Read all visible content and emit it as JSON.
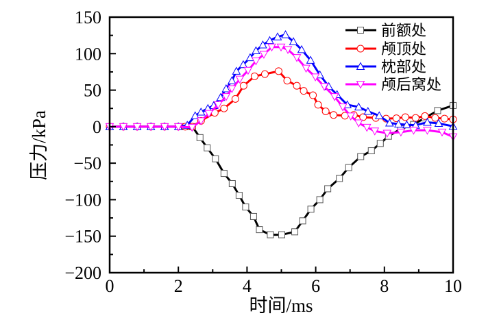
{
  "chart_data": {
    "type": "line",
    "title": "",
    "xlabel": "时间/ms",
    "ylabel": "压力/kPa",
    "xlim": [
      0,
      10
    ],
    "ylim": [
      -200,
      150
    ],
    "xticks": [
      0,
      2,
      4,
      6,
      8,
      10
    ],
    "xtick_labels": [
      "0",
      "2",
      "4",
      "6",
      "8",
      "10"
    ],
    "yticks": [
      150,
      100,
      50,
      0,
      -50,
      -100,
      -150,
      -200
    ],
    "ytick_labels": [
      "150",
      "100",
      "50",
      "0",
      "−50",
      "−100",
      "−150",
      "−200"
    ],
    "grid": false,
    "legend_position": "top-right",
    "series": [
      {
        "name": "前额处",
        "color": "#000000",
        "marker": "square",
        "x": [
          0,
          0.4,
          0.8,
          1.2,
          1.6,
          2.0,
          2.2,
          2.41,
          2.63,
          2.84,
          3.08,
          3.33,
          3.57,
          3.77,
          3.96,
          4.19,
          4.36,
          4.68,
          5.01,
          5.39,
          5.62,
          5.86,
          6.12,
          6.35,
          6.69,
          6.96,
          7.31,
          7.62,
          7.88,
          8.12,
          8.48,
          8.85,
          9.18,
          9.55,
          10.0
        ],
        "y": [
          0,
          0,
          0,
          0,
          0,
          0,
          0,
          0,
          -15,
          -29,
          -44,
          -64,
          -78,
          -94,
          -110,
          -123,
          -141,
          -148,
          -148,
          -144,
          -129,
          -113,
          -100,
          -85,
          -71,
          -56,
          -41,
          -33,
          -23,
          -13,
          -3,
          3,
          12,
          22,
          29
        ]
      },
      {
        "name": "颅顶处",
        "color": "#ff0000",
        "marker": "circle",
        "x": [
          0,
          0.4,
          0.8,
          1.2,
          1.6,
          2.0,
          2.2,
          2.4,
          2.66,
          3.06,
          3.33,
          3.66,
          3.9,
          4.22,
          4.52,
          4.92,
          5.17,
          5.45,
          5.65,
          5.92,
          6.07,
          6.29,
          6.52,
          6.85,
          7.11,
          7.38,
          7.75,
          8.05,
          8.35,
          8.61,
          8.91,
          9.18,
          9.48,
          9.75,
          10.0
        ],
        "y": [
          0,
          0,
          0,
          0,
          0,
          0,
          0,
          0,
          8,
          19,
          25,
          38,
          56,
          69,
          72,
          76,
          63,
          56,
          49,
          43,
          30,
          21,
          16,
          15,
          16,
          13,
          12,
          11,
          11.5,
          13,
          12,
          14.5,
          12,
          11,
          10
        ]
      },
      {
        "name": "枕部处",
        "color": "#0000ff",
        "marker": "triangle-up",
        "x": [
          0,
          0.4,
          0.8,
          1.2,
          1.6,
          2.0,
          2.26,
          2.49,
          2.66,
          2.86,
          3.03,
          3.23,
          3.39,
          3.56,
          3.69,
          3.89,
          4.09,
          4.26,
          4.46,
          4.66,
          4.89,
          5.12,
          5.35,
          5.59,
          5.85,
          6.12,
          6.38,
          6.62,
          6.92,
          7.25,
          7.52,
          7.85,
          8.15,
          8.41,
          8.65,
          8.91,
          9.25,
          9.58,
          10.0
        ],
        "y": [
          0,
          0,
          0,
          0,
          0,
          0,
          2,
          15,
          20,
          25,
          29,
          40,
          52,
          63,
          76,
          85,
          94.5,
          104,
          112,
          118,
          123,
          126,
          116.5,
          105.5,
          91,
          71,
          55,
          44,
          30,
          27,
          21,
          15,
          5,
          3.6,
          2.6,
          2,
          6,
          4.5,
          0.5
        ]
      },
      {
        "name": "颅后窝处",
        "color": "#ff00ff",
        "marker": "triangle-down",
        "x": [
          0,
          0.4,
          0.8,
          1.2,
          1.6,
          2.0,
          2.4,
          2.66,
          2.89,
          3.16,
          3.39,
          3.56,
          3.79,
          4.03,
          4.26,
          4.49,
          4.72,
          4.99,
          5.19,
          5.45,
          5.72,
          5.99,
          6.25,
          6.55,
          6.79,
          7.02,
          7.25,
          7.49,
          7.72,
          8.08,
          8.48,
          8.85,
          9.25,
          9.68,
          10.0
        ],
        "y": [
          0,
          0,
          0,
          0,
          0,
          0,
          -1,
          8,
          18,
          30,
          41,
          52,
          65,
          77,
          90,
          99,
          109,
          109,
          105.5,
          94.5,
          80,
          68,
          55,
          41,
          27,
          14.5,
          5,
          -1,
          -6,
          -9,
          -7.5,
          -5,
          -5,
          -7.5,
          -14
        ]
      }
    ]
  }
}
